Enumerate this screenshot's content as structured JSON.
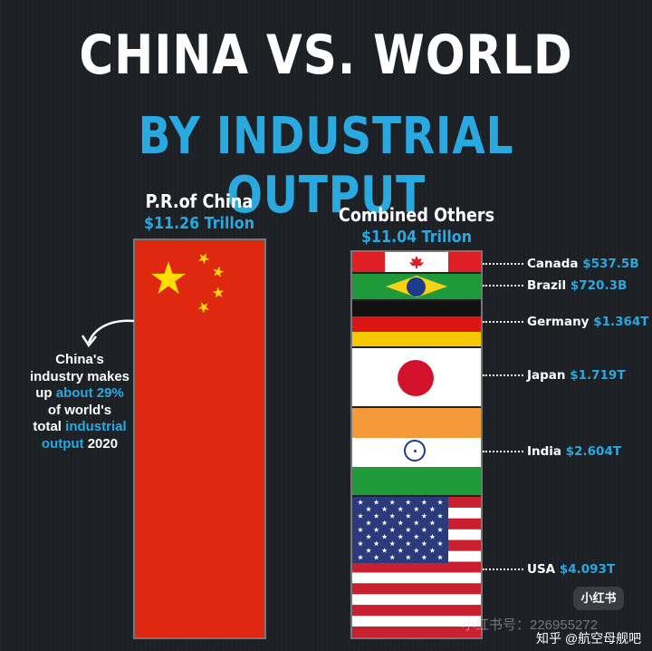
{
  "header": {
    "title": "CHINA VS. WORLD",
    "subtitle": "BY INDUSTRIAL OUTPUT"
  },
  "china": {
    "label": "P.R.of China",
    "value_text": "$11.26 Trillon"
  },
  "others": {
    "label": "Combined Others",
    "value_text": "$11.04 Trillon"
  },
  "note": {
    "line1": "China's",
    "line2": "industry makes",
    "line3a": "up ",
    "line3b": "about 29%",
    "line4": "of world's",
    "line5a": "total ",
    "line5b": "industrial",
    "line6a": "output",
    "line6b": " 2020"
  },
  "colors": {
    "background": "#1c1f24",
    "accent": "#2aa8e0",
    "china_red": "#de2910",
    "star_yellow": "#ffde00"
  },
  "chart_data": {
    "type": "bar",
    "title": "CHINA VS. WORLD",
    "subtitle": "BY INDUSTRIAL OUTPUT",
    "categories": [
      "P.R.of China",
      "Combined Others"
    ],
    "values": [
      11.26,
      11.04
    ],
    "unit": "Trillion USD",
    "stacked_breakdown": [
      {
        "name": "Canada",
        "value_text": "$537.5B",
        "value": 0.5375
      },
      {
        "name": "Brazil",
        "value_text": "$720.3B",
        "value": 0.7203
      },
      {
        "name": "Germany",
        "value_text": "$1.364T",
        "value": 1.364
      },
      {
        "name": "Japan",
        "value_text": "$1.719T",
        "value": 1.719
      },
      {
        "name": "India",
        "value_text": "$2.604T",
        "value": 2.604
      },
      {
        "name": "USA",
        "value_text": "$4.093T",
        "value": 4.093
      }
    ]
  },
  "watermarks": {
    "badge": "小红书",
    "id_text": "小红书号：226955272",
    "zhihu": "知乎 @航空母舰吧"
  }
}
